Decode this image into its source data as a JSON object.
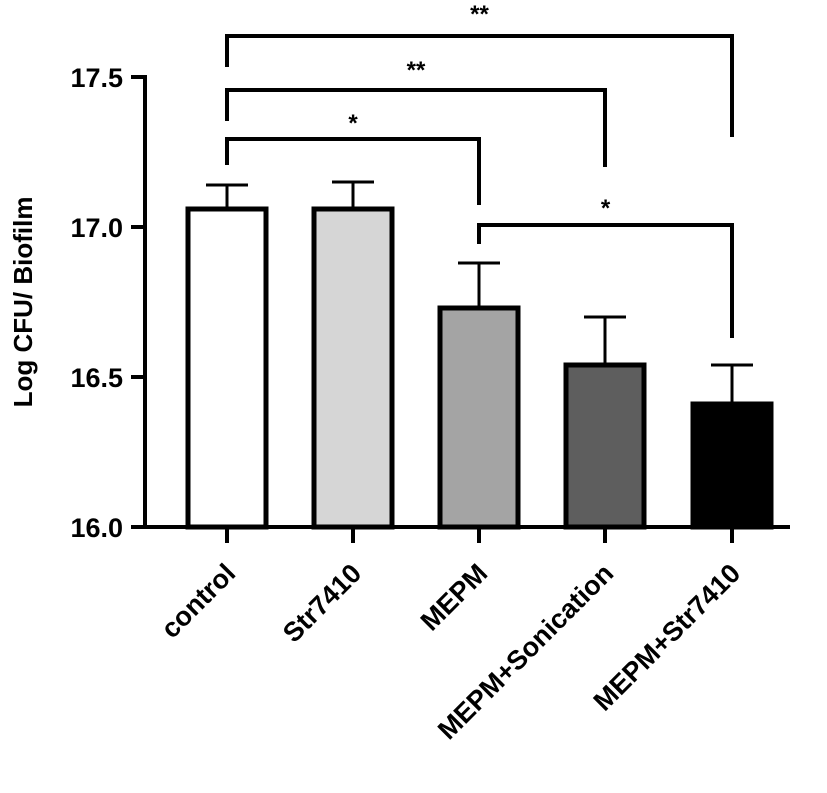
{
  "chart_data": {
    "type": "bar",
    "title": "",
    "xlabel": "",
    "ylabel": "Log CFU/ Biofilm",
    "ylim": [
      16.0,
      17.5
    ],
    "yticks": [
      16.0,
      16.5,
      17.0,
      17.5
    ],
    "ytick_labels": [
      "16.0",
      "16.5",
      "17.0",
      "17.5"
    ],
    "categories": [
      "control",
      "Str7410",
      "MEPM",
      "MEPM+Sonication",
      "MEPM+Str7410"
    ],
    "values": [
      17.06,
      17.06,
      16.73,
      16.54,
      16.41
    ],
    "error_upper": [
      0.08,
      0.09,
      0.15,
      0.16,
      0.13
    ],
    "bar_colors": [
      "#ffffff",
      "#d6d6d6",
      "#a4a4a4",
      "#5e5e5e",
      "#000000"
    ],
    "grid": false,
    "significance": [
      {
        "from": 0,
        "to": 4,
        "label": "**"
      },
      {
        "from": 0,
        "to": 3,
        "label": "**"
      },
      {
        "from": 0,
        "to": 2,
        "label": "*"
      },
      {
        "from": 2,
        "to": 4,
        "label": "*"
      }
    ]
  }
}
